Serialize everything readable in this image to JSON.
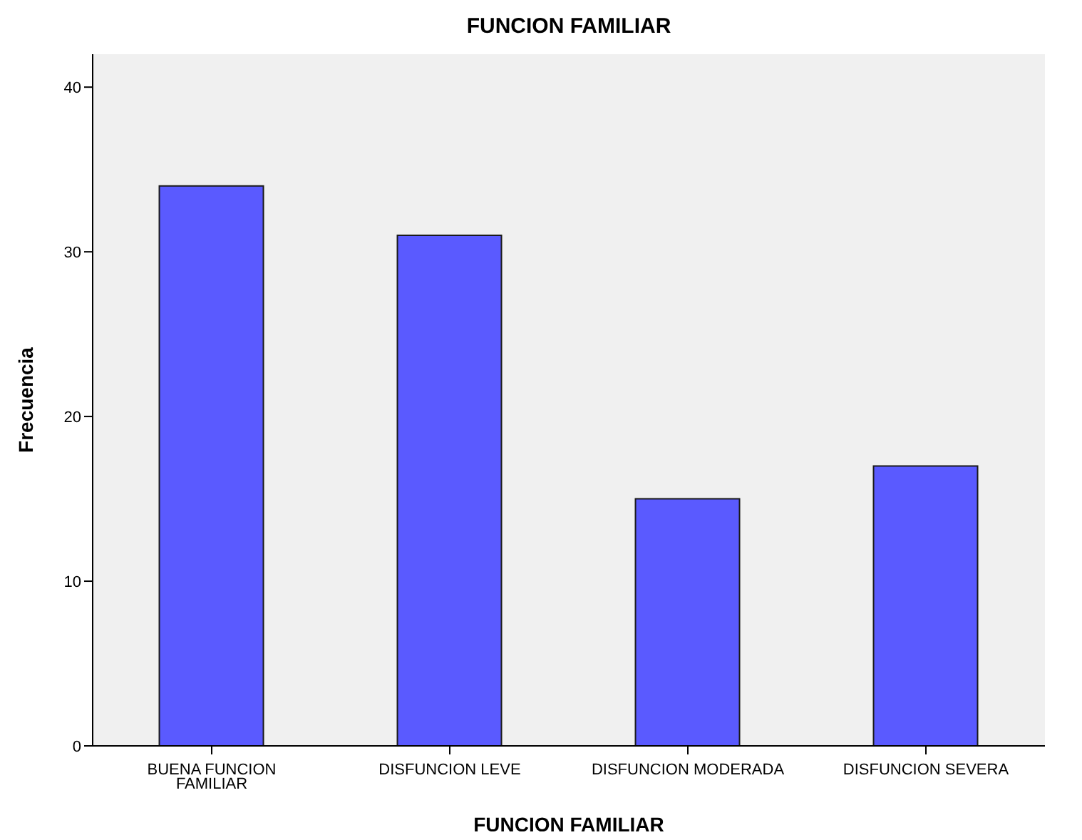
{
  "chart_data": {
    "type": "bar",
    "title": "FUNCION FAMILIAR",
    "xlabel": "FUNCION FAMILIAR",
    "ylabel": "Frecuencia",
    "categories": [
      "BUENA FUNCION FAMILIAR",
      "DISFUNCION LEVE",
      "DISFUNCION MODERADA",
      "DISFUNCION SEVERA"
    ],
    "values": [
      34,
      31,
      15,
      17
    ],
    "color": "#5a5aff",
    "ylim": [
      0,
      42
    ],
    "yticks": [
      0,
      10,
      20,
      30,
      40
    ],
    "grid": false
  }
}
